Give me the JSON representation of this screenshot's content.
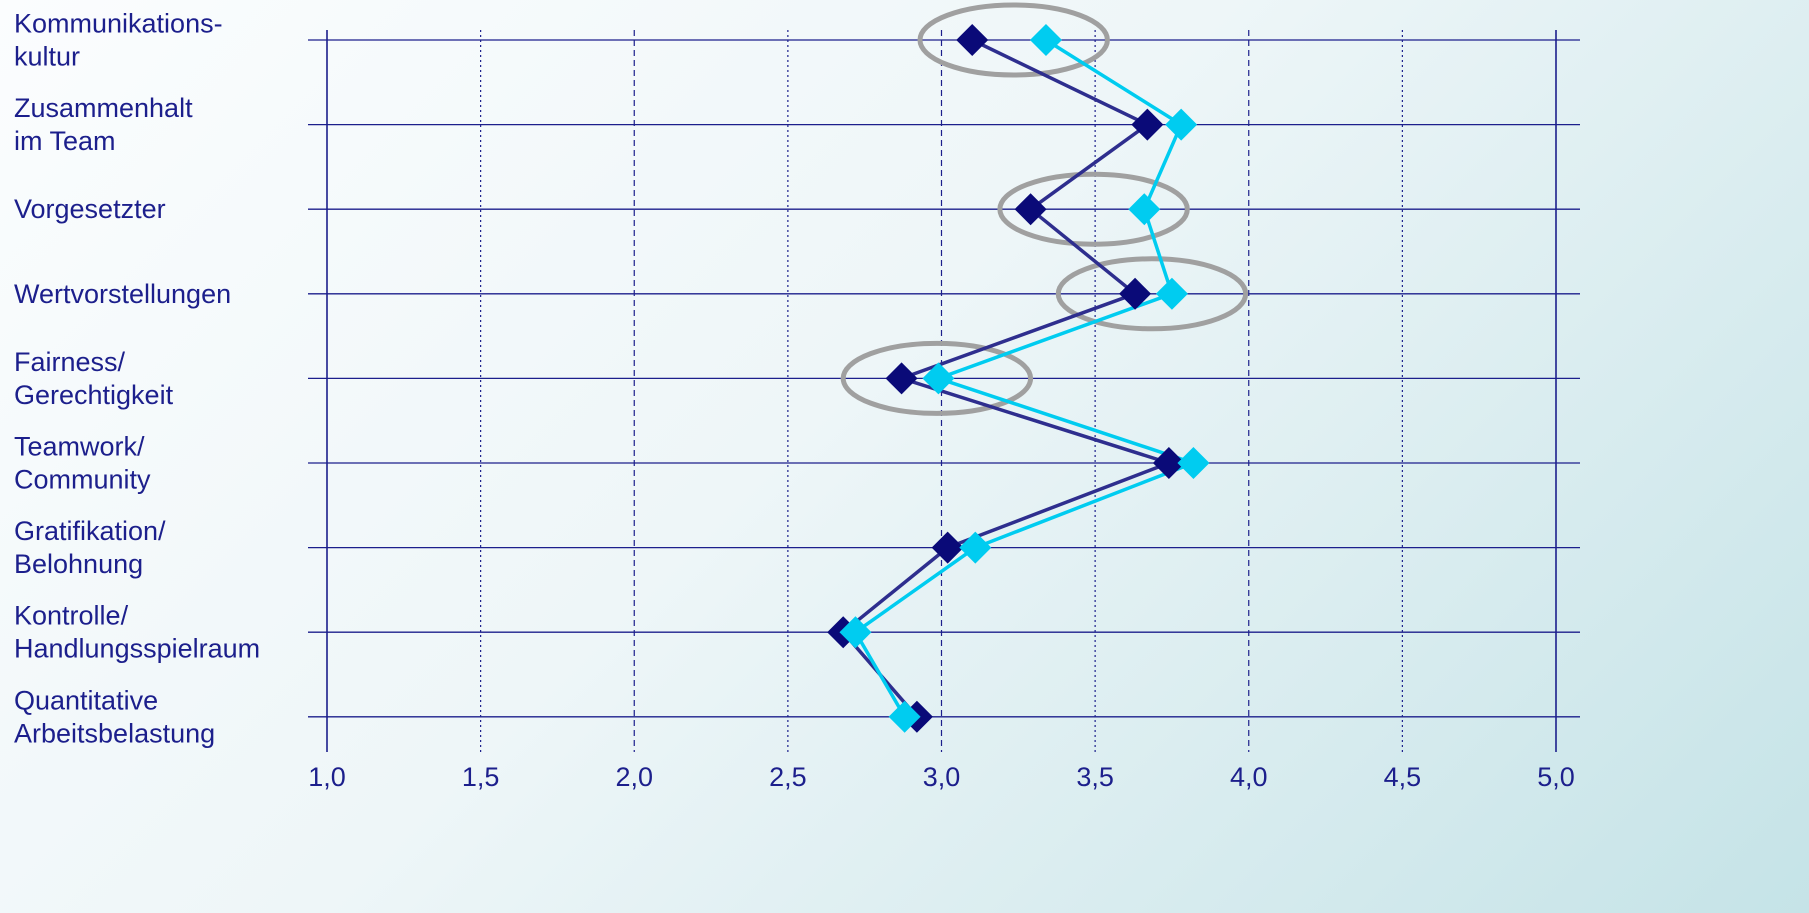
{
  "colors": {
    "series_dark": "#0a0a78",
    "series_dark_line": "#2e2e8e",
    "series_light": "#00ccf0",
    "axis": "#1c1f8c",
    "highlight_ellipse": "#a0a0a0"
  },
  "chart_data": {
    "type": "line",
    "orientation": "horizontal-values",
    "categories": [
      [
        "Kommunikations-",
        "kultur"
      ],
      [
        "Zusammenhalt",
        "im Team"
      ],
      [
        "Vorgesetzter"
      ],
      [
        "Wertvorstellungen"
      ],
      [
        "Fairness/",
        "Gerechtigkeit"
      ],
      [
        "Teamwork/",
        "Community"
      ],
      [
        "Gratifikation/",
        "Belohnung"
      ],
      [
        "Kontrolle/",
        "Handlungsspielraum"
      ],
      [
        "Quantitative",
        "Arbeitsbelastung"
      ]
    ],
    "x_ticks": [
      "1,0",
      "1,5",
      "2,0",
      "2,5",
      "3,0",
      "3,5",
      "4,0",
      "4,5",
      "5,0"
    ],
    "xlim": [
      1,
      5
    ],
    "series": [
      {
        "color": "#0a0a78",
        "values": [
          3.1,
          3.67,
          3.29,
          3.63,
          2.87,
          3.74,
          3.02,
          2.68,
          2.92
        ]
      },
      {
        "color": "#00ccf0",
        "values": [
          3.34,
          3.78,
          3.66,
          3.75,
          2.99,
          3.82,
          3.11,
          2.72,
          2.88
        ]
      }
    ],
    "highlights": [
      {
        "category": 0,
        "from": 2.93,
        "to": 3.54
      },
      {
        "category": 2,
        "from": 3.19,
        "to": 3.8
      },
      {
        "category": 3,
        "from": 3.38,
        "to": 3.99
      },
      {
        "category": 4,
        "from": 2.68,
        "to": 3.29
      }
    ],
    "grid": true,
    "legend": "none"
  }
}
